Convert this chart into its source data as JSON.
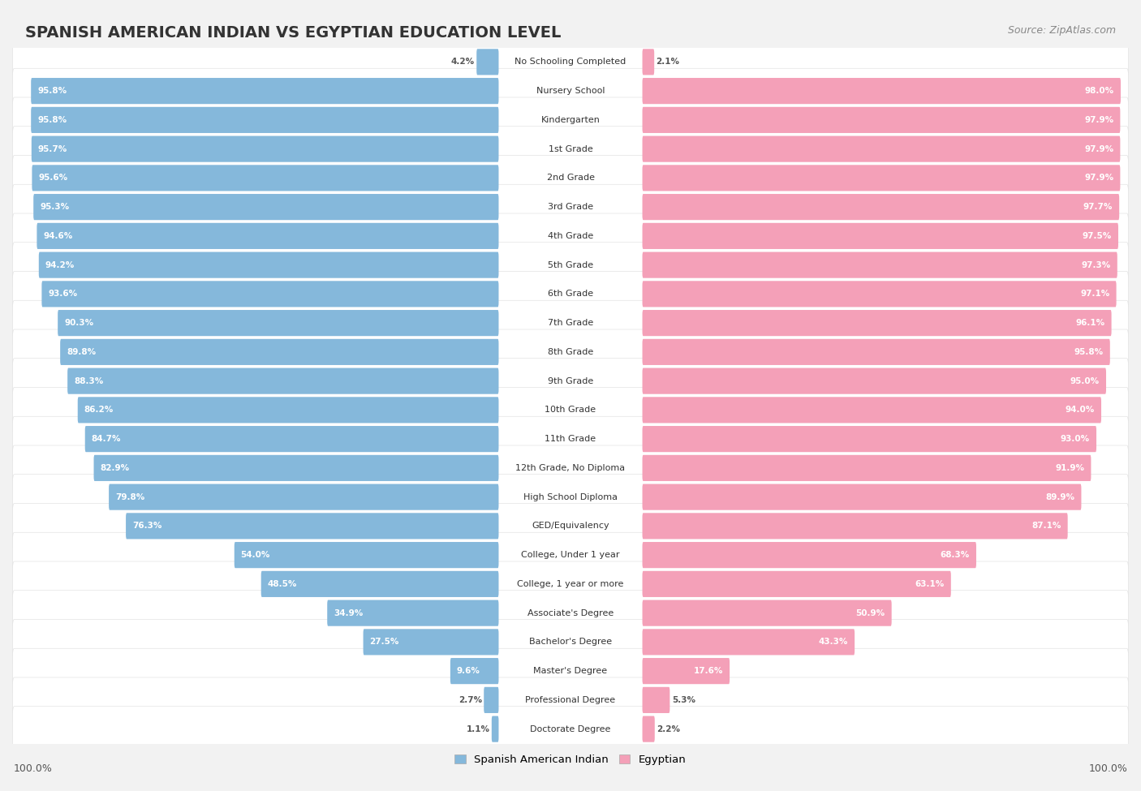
{
  "title": "SPANISH AMERICAN INDIAN VS EGYPTIAN EDUCATION LEVEL",
  "source": "Source: ZipAtlas.com",
  "categories": [
    "No Schooling Completed",
    "Nursery School",
    "Kindergarten",
    "1st Grade",
    "2nd Grade",
    "3rd Grade",
    "4th Grade",
    "5th Grade",
    "6th Grade",
    "7th Grade",
    "8th Grade",
    "9th Grade",
    "10th Grade",
    "11th Grade",
    "12th Grade, No Diploma",
    "High School Diploma",
    "GED/Equivalency",
    "College, Under 1 year",
    "College, 1 year or more",
    "Associate's Degree",
    "Bachelor's Degree",
    "Master's Degree",
    "Professional Degree",
    "Doctorate Degree"
  ],
  "spanish_american_indian": [
    4.2,
    95.8,
    95.8,
    95.7,
    95.6,
    95.3,
    94.6,
    94.2,
    93.6,
    90.3,
    89.8,
    88.3,
    86.2,
    84.7,
    82.9,
    79.8,
    76.3,
    54.0,
    48.5,
    34.9,
    27.5,
    9.6,
    2.7,
    1.1
  ],
  "egyptian": [
    2.1,
    98.0,
    97.9,
    97.9,
    97.9,
    97.7,
    97.5,
    97.3,
    97.1,
    96.1,
    95.8,
    95.0,
    94.0,
    93.0,
    91.9,
    89.9,
    87.1,
    68.3,
    63.1,
    50.9,
    43.3,
    17.6,
    5.3,
    2.2
  ],
  "blue_color": "#85b8db",
  "pink_color": "#f4a0b8",
  "bg_color": "#f2f2f2",
  "row_color": "#ffffff",
  "legend_blue": "Spanish American Indian",
  "legend_pink": "Egyptian",
  "bottom_left": "100.0%",
  "bottom_right": "100.0%",
  "title_fontsize": 14,
  "source_fontsize": 9,
  "label_fontsize": 8,
  "value_fontsize": 7.5
}
